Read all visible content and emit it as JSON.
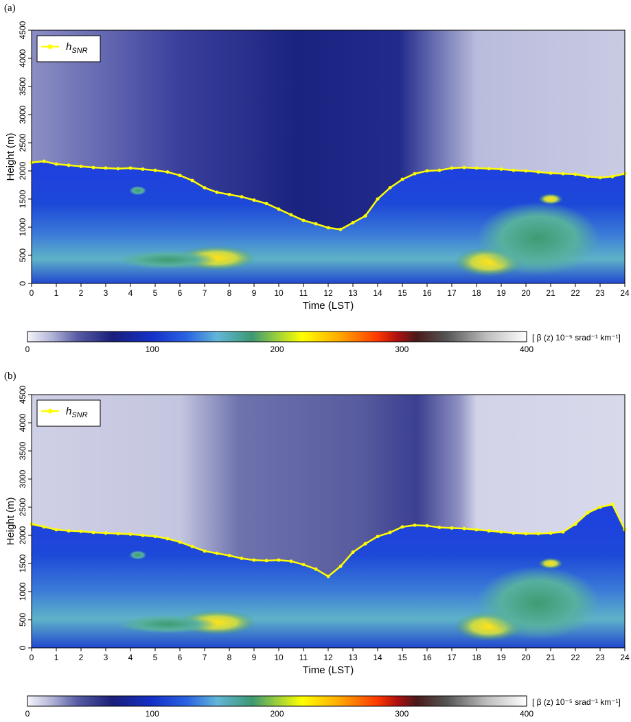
{
  "figure": {
    "colorbar_unit": "[ β (z) 10⁻⁵ srad⁻¹ km⁻¹]"
  },
  "chart_data": [
    {
      "panel_label": "(a)",
      "type": "heatmap",
      "xlabel": "Time (LST)",
      "ylabel": "Height (m)",
      "xlim": [
        0,
        24
      ],
      "ylim": [
        0,
        4500
      ],
      "x_ticks": [
        "0",
        "1",
        "2",
        "3",
        "4",
        "5",
        "6",
        "7",
        "8",
        "9",
        "10",
        "11",
        "12",
        "13",
        "14",
        "15",
        "16",
        "17",
        "18",
        "19",
        "20",
        "21",
        "22",
        "23",
        "24"
      ],
      "y_ticks": [
        "0",
        "500",
        "1000",
        "1500",
        "2000",
        "2500",
        "3000",
        "3500",
        "4000",
        "4500"
      ],
      "legend": {
        "position": "top-left",
        "entry": "hSNR",
        "entry_main": "h",
        "entry_sub": "SNR",
        "color": "#ffff00"
      },
      "colorbar": {
        "ticks": [
          "0",
          "100",
          "200",
          "300",
          "400"
        ],
        "range": [
          0,
          400
        ]
      },
      "series": [
        {
          "name": "hSNR",
          "x": [
            0,
            0.5,
            1,
            1.5,
            2,
            2.5,
            3,
            3.5,
            4,
            4.5,
            5,
            5.5,
            6,
            6.5,
            7,
            7.5,
            8,
            8.5,
            9,
            9.5,
            10,
            10.5,
            11,
            11.5,
            12,
            12.5,
            13,
            13.5,
            14,
            14.5,
            15,
            15.5,
            16,
            16.5,
            17,
            17.5,
            18,
            18.5,
            19,
            19.5,
            20,
            20.5,
            21,
            21.5,
            22,
            22.5,
            23,
            23.5,
            24
          ],
          "y": [
            2150,
            2170,
            2120,
            2100,
            2080,
            2060,
            2050,
            2040,
            2050,
            2030,
            2010,
            1980,
            1920,
            1830,
            1700,
            1620,
            1580,
            1540,
            1480,
            1420,
            1320,
            1220,
            1120,
            1060,
            990,
            960,
            1080,
            1200,
            1500,
            1700,
            1850,
            1950,
            2000,
            2010,
            2050,
            2060,
            2050,
            2040,
            2030,
            2010,
            2000,
            1980,
            1960,
            1950,
            1940,
            1900,
            1880,
            1900,
            1950
          ]
        }
      ],
      "heatmap_description_values": {
        "boundary_layer_top_approx": "hSNR",
        "aerosol_layer_peak_value_approx": 200
      }
    },
    {
      "panel_label": "(b)",
      "type": "heatmap",
      "xlabel": "Time (LST)",
      "ylabel": "Height (m)",
      "xlim": [
        0,
        24
      ],
      "ylim": [
        0,
        4500
      ],
      "x_ticks": [
        "0",
        "1",
        "2",
        "3",
        "4",
        "5",
        "6",
        "7",
        "8",
        "9",
        "10",
        "11",
        "12",
        "13",
        "14",
        "15",
        "16",
        "17",
        "18",
        "19",
        "20",
        "21",
        "22",
        "23",
        "24"
      ],
      "y_ticks": [
        "0",
        "500",
        "1000",
        "1500",
        "2000",
        "2500",
        "3000",
        "3500",
        "4000",
        "4500"
      ],
      "legend": {
        "position": "top-left",
        "entry": "hSNR",
        "entry_main": "h",
        "entry_sub": "SNR",
        "color": "#ffff00"
      },
      "colorbar": {
        "ticks": [
          "0",
          "100",
          "200",
          "300",
          "400"
        ],
        "range": [
          0,
          400
        ]
      },
      "series": [
        {
          "name": "hSNR",
          "x": [
            0,
            0.5,
            1,
            1.5,
            2,
            2.5,
            3,
            3.5,
            4,
            4.5,
            5,
            5.5,
            6,
            6.5,
            7,
            7.5,
            8,
            8.5,
            9,
            9.5,
            10,
            10.5,
            11,
            11.5,
            12,
            12.5,
            13,
            13.5,
            14,
            14.5,
            15,
            15.5,
            16,
            16.5,
            17,
            17.5,
            18,
            18.5,
            19,
            19.5,
            20,
            20.5,
            21,
            21.5,
            22,
            22.5,
            23,
            23.5,
            24
          ],
          "y": [
            2200,
            2150,
            2100,
            2080,
            2070,
            2050,
            2040,
            2030,
            2020,
            2000,
            1980,
            1940,
            1880,
            1800,
            1720,
            1680,
            1640,
            1590,
            1560,
            1550,
            1560,
            1540,
            1480,
            1400,
            1270,
            1450,
            1700,
            1850,
            1980,
            2050,
            2150,
            2180,
            2170,
            2140,
            2130,
            2120,
            2100,
            2080,
            2060,
            2040,
            2030,
            2030,
            2040,
            2060,
            2200,
            2400,
            2500,
            2550,
            2100
          ]
        }
      ]
    }
  ]
}
